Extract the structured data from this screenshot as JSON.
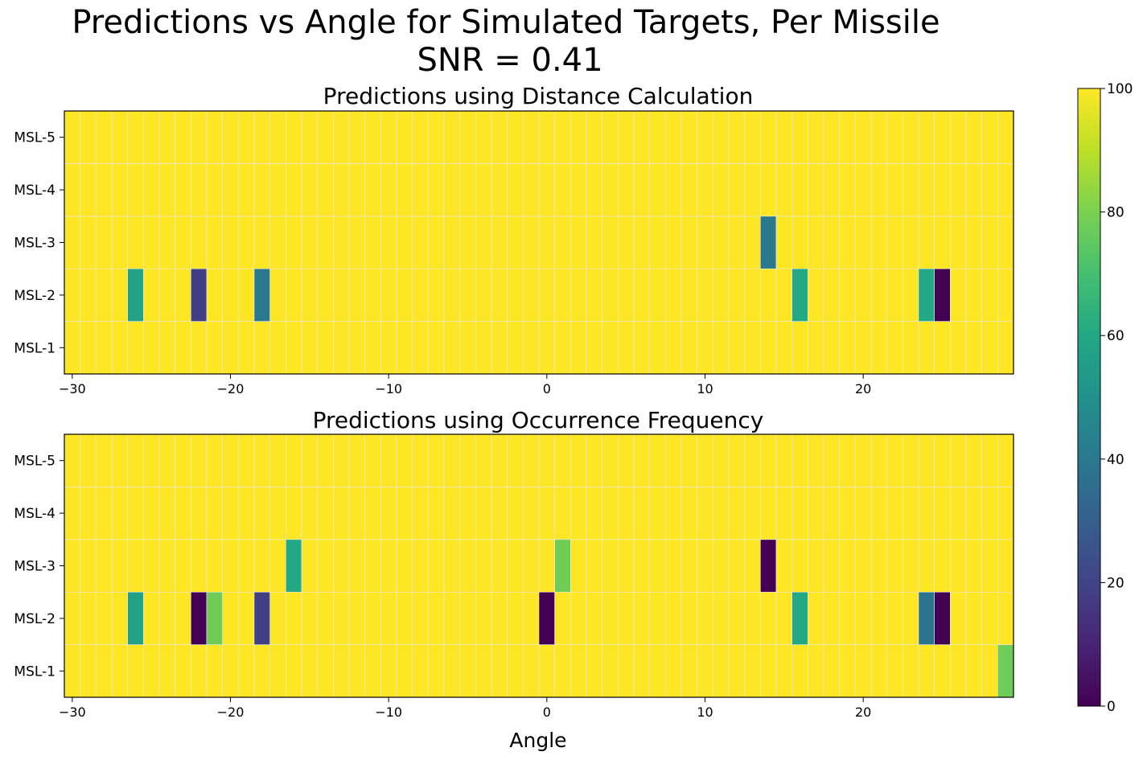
{
  "figure": {
    "title_line1": "Predictions vs Angle for Simulated Targets, Per Missile",
    "title_line2": "SNR = 0.41"
  },
  "colorbar": {
    "colormap": "viridis",
    "min": 0,
    "max": 100,
    "ticks": [
      "0",
      "20",
      "40",
      "60",
      "80",
      "100"
    ]
  },
  "chart_data": [
    {
      "type": "heatmap",
      "title": "Predictions using Distance Calculation",
      "xlabel": "",
      "x_ticks": [
        "−30",
        "−20",
        "−10",
        "0",
        "10",
        "20"
      ],
      "y_categories": [
        "MSL-1",
        "MSL-2",
        "MSL-3",
        "MSL-4",
        "MSL-5"
      ],
      "x_range": [
        -30,
        29
      ],
      "cell_width": 1,
      "default_value": 100,
      "color_range": [
        0,
        100
      ],
      "cells": [
        {
          "angle": -26,
          "missile": "MSL-2",
          "value": 57
        },
        {
          "angle": -22,
          "missile": "MSL-2",
          "value": 18
        },
        {
          "angle": -18,
          "missile": "MSL-2",
          "value": 40
        },
        {
          "angle": 14,
          "missile": "MSL-3",
          "value": 40
        },
        {
          "angle": 16,
          "missile": "MSL-2",
          "value": 60
        },
        {
          "angle": 24,
          "missile": "MSL-2",
          "value": 60
        },
        {
          "angle": 25,
          "missile": "MSL-2",
          "value": 0
        }
      ]
    },
    {
      "type": "heatmap",
      "title": "Predictions using Occurrence Frequency",
      "xlabel": "Angle",
      "x_ticks": [
        "−30",
        "−20",
        "−10",
        "0",
        "10",
        "20"
      ],
      "y_categories": [
        "MSL-1",
        "MSL-2",
        "MSL-3",
        "MSL-4",
        "MSL-5"
      ],
      "x_range": [
        -30,
        29
      ],
      "cell_width": 1,
      "default_value": 100,
      "color_range": [
        0,
        100
      ],
      "cells": [
        {
          "angle": -26,
          "missile": "MSL-2",
          "value": 57
        },
        {
          "angle": -22,
          "missile": "MSL-2",
          "value": 0
        },
        {
          "angle": -21,
          "missile": "MSL-2",
          "value": 78
        },
        {
          "angle": -18,
          "missile": "MSL-2",
          "value": 18
        },
        {
          "angle": -16,
          "missile": "MSL-3",
          "value": 60
        },
        {
          "angle": 0,
          "missile": "MSL-2",
          "value": 0
        },
        {
          "angle": 1,
          "missile": "MSL-3",
          "value": 78
        },
        {
          "angle": 14,
          "missile": "MSL-3",
          "value": 0
        },
        {
          "angle": 16,
          "missile": "MSL-2",
          "value": 60
        },
        {
          "angle": 24,
          "missile": "MSL-2",
          "value": 38
        },
        {
          "angle": 25,
          "missile": "MSL-2",
          "value": 0
        },
        {
          "angle": 29,
          "missile": "MSL-1",
          "value": 78
        }
      ]
    }
  ]
}
